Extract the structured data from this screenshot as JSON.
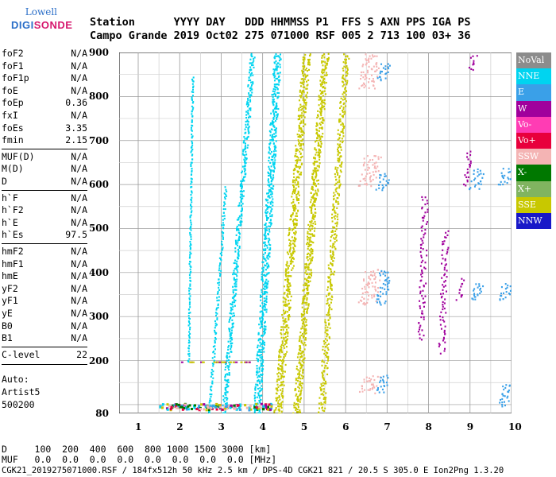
{
  "logo": {
    "line1": "Lowell",
    "line2a": "DIGI",
    "line2b": "SONDE"
  },
  "header": {
    "row1": "Station      YYYY DAY   DDD HHMMSS P1  FFS S AXN PPS IGA PS",
    "row2": "Campo Grande 2019 Oct02 275 071000 RSF 005 2 713 100 03+ 36"
  },
  "params": [
    {
      "k": "foF2",
      "v": "N/A"
    },
    {
      "k": "foF1",
      "v": "N/A"
    },
    {
      "k": "foF1p",
      "v": "N/A"
    },
    {
      "k": "foE",
      "v": "N/A"
    },
    {
      "k": "foEp",
      "v": "0.36"
    },
    {
      "k": "fxI",
      "v": "N/A"
    },
    {
      "k": "foEs",
      "v": "3.35"
    },
    {
      "k": "fmin",
      "v": "2.15"
    },
    {
      "k": "MUF(D)",
      "v": "N/A"
    },
    {
      "k": "M(D)",
      "v": "N/A"
    },
    {
      "k": "D",
      "v": "N/A"
    },
    {
      "k": "h`F",
      "v": "N/A"
    },
    {
      "k": "h`F2",
      "v": "N/A"
    },
    {
      "k": "h`E",
      "v": "N/A"
    },
    {
      "k": "h`Es",
      "v": "97.5"
    },
    {
      "k": "hmF2",
      "v": "N/A"
    },
    {
      "k": "hmF1",
      "v": "N/A"
    },
    {
      "k": "hmE",
      "v": "N/A"
    },
    {
      "k": "yF2",
      "v": "N/A"
    },
    {
      "k": "yF1",
      "v": "N/A"
    },
    {
      "k": "yE",
      "v": "N/A"
    },
    {
      "k": "B0",
      "v": "N/A"
    },
    {
      "k": "B1",
      "v": "N/A"
    },
    {
      "k": "C-level",
      "v": "22"
    }
  ],
  "auto": {
    "l1": "Auto:",
    "l2": "Artist5",
    "l3": "500200"
  },
  "axes": {
    "x_ticks": [
      "1",
      "2",
      "3",
      "4",
      "5",
      "6",
      "7",
      "8",
      "9",
      "10"
    ],
    "y_ticks": [
      "900",
      "800",
      "700",
      "600",
      "500",
      "400",
      "300",
      "200",
      "80"
    ]
  },
  "legend": [
    {
      "label": "NoVal",
      "color": "#8c8c8c"
    },
    {
      "label": "NNE",
      "color": "#00d4f0"
    },
    {
      "label": "E",
      "color": "#3aa0e8"
    },
    {
      "label": "W",
      "color": "#a0009c"
    },
    {
      "label": "Vo-",
      "color": "#ff3cb4"
    },
    {
      "label": "Vo+",
      "color": "#e8003c"
    },
    {
      "label": "SSW",
      "color": "#f4b4b4"
    },
    {
      "label": "X-",
      "color": "#007800"
    },
    {
      "label": "X+",
      "color": "#80b460"
    },
    {
      "label": "SSE",
      "color": "#c8c800"
    },
    {
      "label": "NNW",
      "color": "#1818c8"
    }
  ],
  "bottom": {
    "row1": "D     100  200  400  600  800 1000 1500 3000 [km]",
    "row2": "MUF   0.0  0.0  0.0  0.0  0.0  0.0  0.0  0.0 [MHz]",
    "footer": "CGK21_2019275071000.RSF / 184fx512h 50 kHz 2.5 km / DPS-4D CGK21 821 / 20.5 S 305.0 E Ion2Png 1.3.20"
  }
}
